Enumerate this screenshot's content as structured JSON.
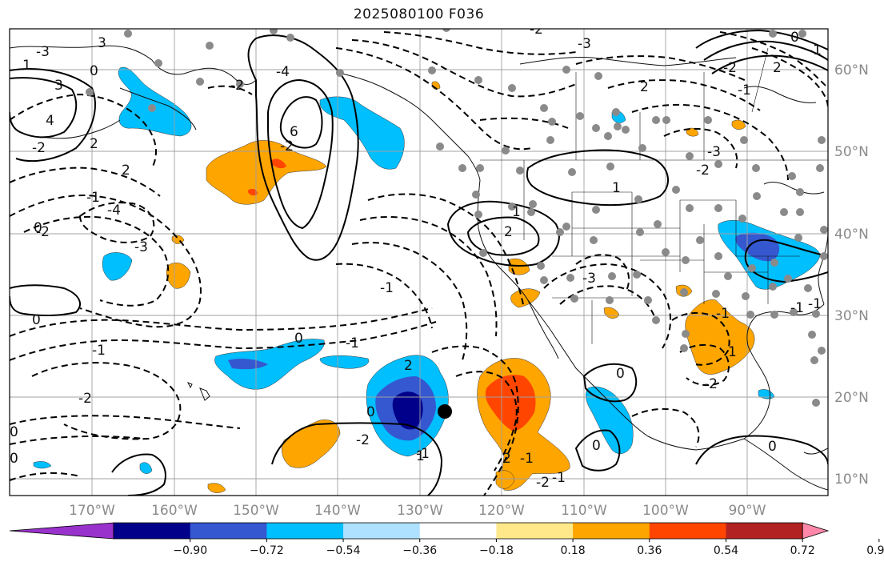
{
  "title": "2025080100 F036",
  "map": {
    "lat_labels": [
      "60°N",
      "50°N",
      "40°N",
      "30°N",
      "20°N",
      "10°N"
    ],
    "lon_labels": [
      "170°W",
      "160°W",
      "150°W",
      "140°W",
      "130°W",
      "120°W",
      "110°W",
      "100°W",
      "90°W"
    ],
    "grid": true
  },
  "colorbar": {
    "ticks": [
      "−0.90",
      "−0.72",
      "−0.54",
      "−0.36",
      "−0.18",
      "0.18",
      "0.36",
      "0.54",
      "0.72",
      "0.90"
    ],
    "colors": [
      "#9932cc",
      "#00008b",
      "#3558d0",
      "#00bfff",
      "#aee0ff",
      "#ffffff",
      "#ffe88a",
      "#ffa500",
      "#ff4500",
      "#b22222",
      "#ff88aa"
    ],
    "extend": "both"
  },
  "contour_labels": [
    "3",
    "1",
    "0",
    "-3",
    "3",
    "4",
    "-2",
    "2",
    "2",
    "-1",
    "-4",
    "-3",
    "-2",
    "0",
    "-1",
    "-2",
    "6",
    "-2",
    "-4",
    "-2",
    "-1",
    "2",
    "1",
    "2",
    "-3",
    "1",
    "0",
    "-1",
    "2",
    "-1",
    "-2",
    "-1",
    "2",
    "-1",
    "0",
    "-2",
    "0",
    "1",
    "0",
    "-1",
    "-1",
    "-2",
    "-3",
    "-2",
    "-1",
    "0",
    "-1",
    "0",
    "-2",
    "1",
    "2",
    "-3",
    "-2",
    "-1",
    "0",
    "0",
    "0"
  ]
}
